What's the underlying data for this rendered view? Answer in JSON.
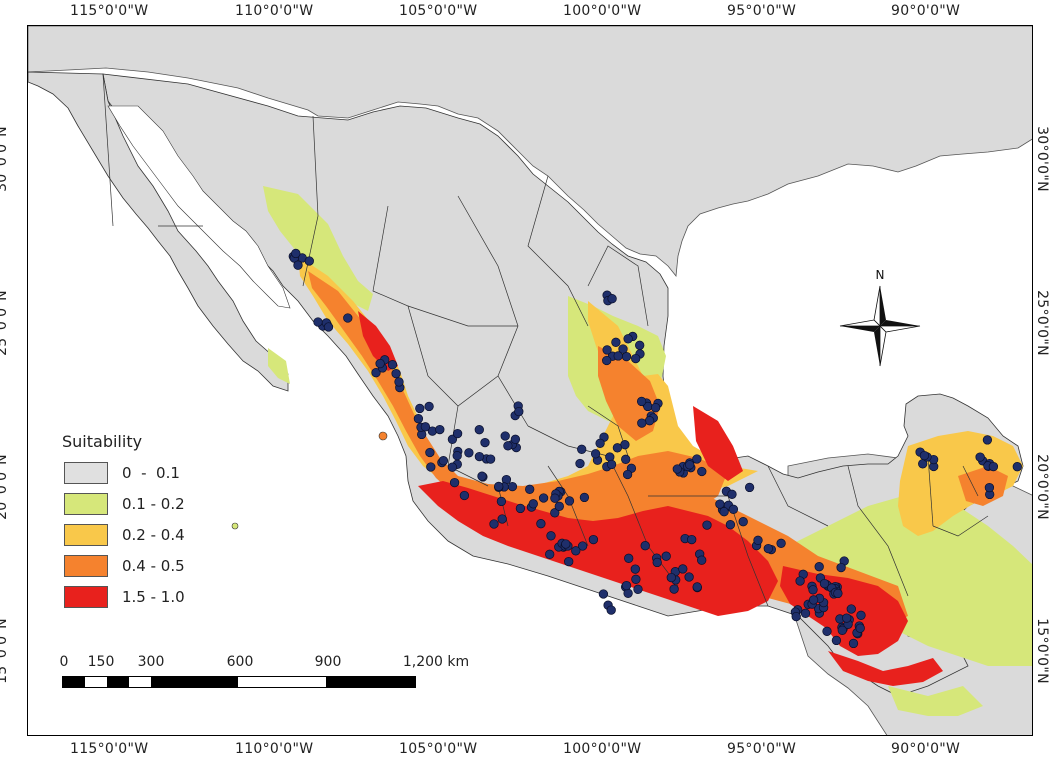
{
  "map": {
    "legend": {
      "title": "Suitability",
      "classes": [
        {
          "label": "0  -  0.1",
          "color": "#e0e0e0"
        },
        {
          "label": "0.1 - 0.2",
          "color": "#d6e77a"
        },
        {
          "label": "0.2 - 0.4",
          "color": "#f9c84a"
        },
        {
          "label": "0.4 - 0.5",
          "color": "#f5822e"
        },
        {
          "label": "1.5 - 1.0",
          "color": "#e8211d"
        }
      ]
    },
    "longitude_labels": [
      "115°0'0\"W",
      "110°0'0\"W",
      "105°0'0\"W",
      "100°0'0\"W",
      "95°0'0\"W",
      "90°0'0\"W"
    ],
    "latitude_labels": [
      "30°0'0\"N",
      "25°0'0\"N",
      "20°0'0\"N",
      "15°0'0\"N"
    ],
    "north_arrow_label": "N",
    "scale_bar": {
      "labels": [
        "0",
        "150",
        "300",
        "600",
        "900",
        "1,200  km"
      ]
    },
    "colors": {
      "ocean": "#ffffff",
      "land_outside": "#dadada",
      "state_border": "#333333",
      "occurrence_point": "#1f2f6b",
      "occurrence_outline": "#0a0f2a"
    }
  }
}
